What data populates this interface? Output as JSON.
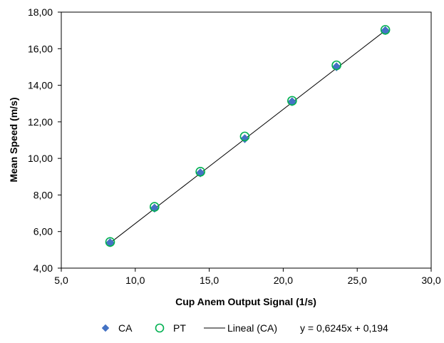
{
  "chart_data": {
    "type": "scatter",
    "title": "",
    "xlabel": "Cup Anem Output Signal (1/s)",
    "ylabel": "Mean Speed (m/s)",
    "xlim": [
      5.0,
      30.0
    ],
    "ylim": [
      4.0,
      18.0
    ],
    "x_ticks": [
      "5,0",
      "10,0",
      "15,0",
      "20,0",
      "25,0",
      "30,0"
    ],
    "y_ticks": [
      "4,00",
      "6,00",
      "8,00",
      "10,00",
      "12,00",
      "14,00",
      "16,00",
      "18,00"
    ],
    "grid": false,
    "legend_position": "bottom",
    "series": [
      {
        "name": "CA",
        "marker": "diamond",
        "color": "#4472C4",
        "points": [
          {
            "x": 8.3,
            "y": 5.39
          },
          {
            "x": 11.3,
            "y": 7.28
          },
          {
            "x": 14.4,
            "y": 9.21
          },
          {
            "x": 17.4,
            "y": 11.08
          },
          {
            "x": 20.6,
            "y": 13.1
          },
          {
            "x": 23.6,
            "y": 15.01
          },
          {
            "x": 26.9,
            "y": 16.99
          }
        ]
      },
      {
        "name": "PT",
        "marker": "circle",
        "color": "#00B050",
        "points": [
          {
            "x": 8.3,
            "y": 5.43
          },
          {
            "x": 11.3,
            "y": 7.35
          },
          {
            "x": 14.4,
            "y": 9.27
          },
          {
            "x": 17.4,
            "y": 11.2
          },
          {
            "x": 20.6,
            "y": 13.15
          },
          {
            "x": 23.6,
            "y": 15.09
          },
          {
            "x": 26.9,
            "y": 17.03
          }
        ]
      }
    ],
    "trendline": {
      "name": "Lineal (CA)",
      "slope": 0.6245,
      "intercept": 0.194,
      "x_range": [
        8.3,
        26.9
      ],
      "color": "#000000",
      "equation": "y = 0,6245x + 0,194"
    }
  }
}
